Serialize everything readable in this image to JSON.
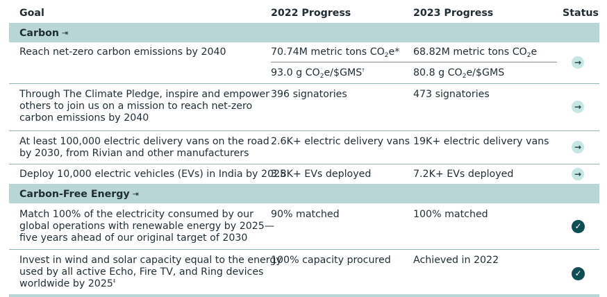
{
  "header": {
    "goal": "Goal",
    "progress_2022": "2022 Progress",
    "progress_2023": "2023 Progress",
    "status": "Status"
  },
  "sections": [
    {
      "title": "Carbon",
      "icon": "section-link-icon",
      "rows": [
        {
          "goal": [
            "Reach net-zero carbon emissions by 2040"
          ],
          "p2022": [
            {
              "pre": "70.74M metric tons CO",
              "sub": "2",
              "post": "e",
              "sup": "*"
            },
            {
              "pre": "93.0 g CO",
              "sub": "2",
              "post": "e/$GMS",
              "sup": "†"
            }
          ],
          "p2023": [
            {
              "pre": "68.82M metric tons CO",
              "sub": "2",
              "post": "e",
              "sup": ""
            },
            {
              "pre": "80.8 g CO",
              "sub": "2",
              "post": "e/$GMS",
              "sup": ""
            }
          ],
          "status": "arrow-right-icon"
        },
        {
          "goal": [
            "Through The Climate Pledge, inspire and empower",
            "others to join us on a mission to reach net-zero",
            "carbon emissions by 2040"
          ],
          "p2022": "396 signatories",
          "p2023": "473 signatories",
          "status": "arrow-right-icon"
        },
        {
          "goal": [
            "At least 100,000 electric delivery vans on the road",
            "by 2030, from Rivian and other manufacturers"
          ],
          "p2022": "2.6K+ electric delivery vans",
          "p2023": "19K+ electric delivery vans",
          "status": "arrow-right-icon"
        },
        {
          "goal": [
            "Deploy 10,000 electric vehicles (EVs) in India by 2025"
          ],
          "p2022": "3.8K+ EVs deployed",
          "p2023": "7.2K+ EVs deployed",
          "status": "arrow-right-icon"
        }
      ]
    },
    {
      "title": "Carbon-Free Energy",
      "icon": "section-link-icon",
      "rows": [
        {
          "goal": [
            "Match 100% of the electricity consumed by our",
            "global operations with renewable energy by 2025—",
            "five years ahead of our original target of 2030"
          ],
          "p2022": "90% matched",
          "p2023": "100% matched",
          "status": "check-icon"
        },
        {
          "goal": [
            "Invest in wind and solar capacity equal to the energy",
            "used by all active Echo, Fire TV, and Ring devices",
            "worldwide by 2025"
          ],
          "goal_sup": "‡",
          "p2022": "100% capacity procured",
          "p2023": "Achieved in 2022",
          "status": "check-icon"
        }
      ]
    }
  ],
  "colors": {
    "section_band": "#b8d6d6",
    "arrow_badge": "#c6e6e4",
    "check_badge": "#0c4e53"
  }
}
